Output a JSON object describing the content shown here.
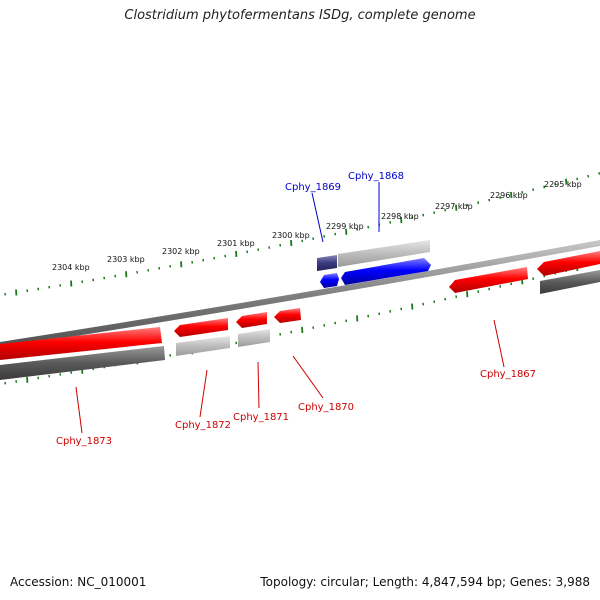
{
  "title": "Clostridium phytofermentans ISDg, complete genome",
  "footer": {
    "accession": "Accession: NC_010001",
    "summary": "Topology: circular; Length: 4,847,594 bp; Genes: 3,988"
  },
  "colors": {
    "forward_gene": "#ff0000",
    "reverse_gene": "#0000ff",
    "forward_label": "#cc0000",
    "reverse_label": "#0000cc",
    "tick_mark": "#1a7a1a",
    "backbone": "#808080"
  },
  "ruler": {
    "unit": "kbp",
    "labels": [
      "2304 kbp",
      "2303 kbp",
      "2302 kbp",
      "2301 kbp",
      "2300 kbp",
      "2299 kbp",
      "2298 kbp",
      "2297 kbp",
      "2296 kbp",
      "2295 kbp"
    ]
  },
  "genes": [
    {
      "name": "Cphy_1869",
      "strand": "-"
    },
    {
      "name": "Cphy_1868",
      "strand": "-"
    },
    {
      "name": "Cphy_1867",
      "strand": "+"
    },
    {
      "name": "Cphy_1870",
      "strand": "+"
    },
    {
      "name": "Cphy_1871",
      "strand": "+"
    },
    {
      "name": "Cphy_1872",
      "strand": "+"
    },
    {
      "name": "Cphy_1873",
      "strand": "+"
    }
  ]
}
